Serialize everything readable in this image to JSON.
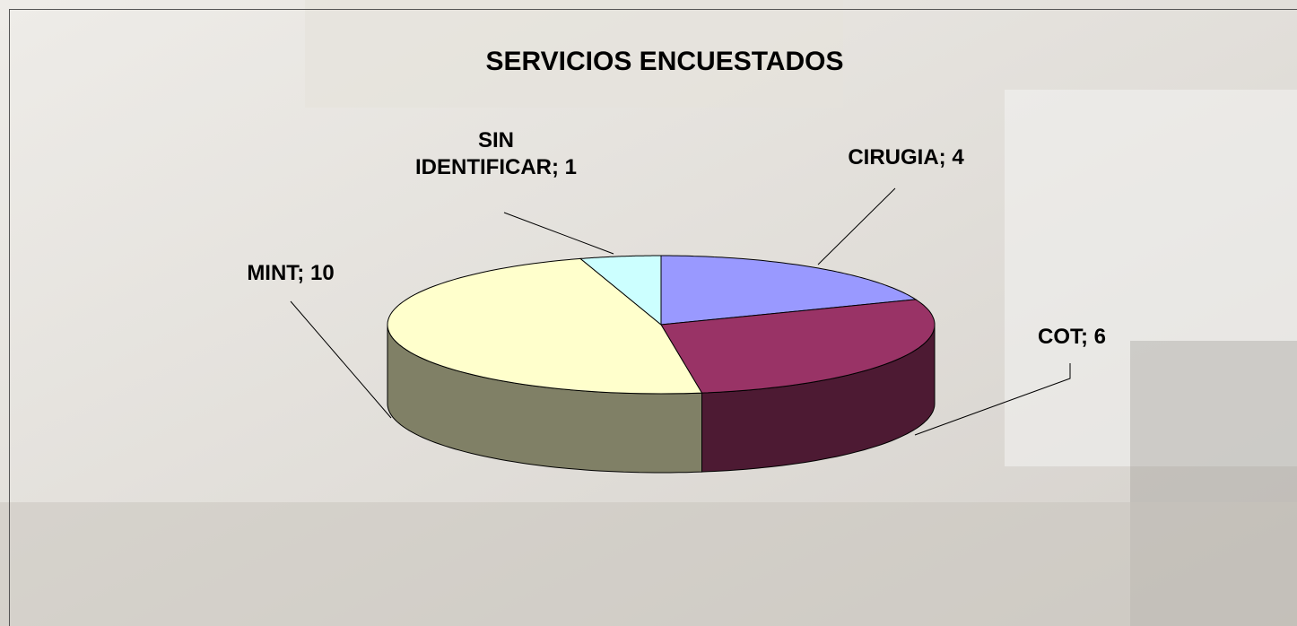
{
  "chart_data": {
    "type": "pie3d",
    "title": "SERVICIOS ENCUESTADOS",
    "values": [
      4,
      6,
      10,
      1
    ],
    "value_labels": [
      "CIRUGIA; 4",
      "COT; 6",
      "MINT; 10",
      "SIN IDENTIFICAR; 1"
    ],
    "colors": [
      "#9999ff",
      "#993366",
      "#ffffcc",
      "#ccffff"
    ]
  }
}
